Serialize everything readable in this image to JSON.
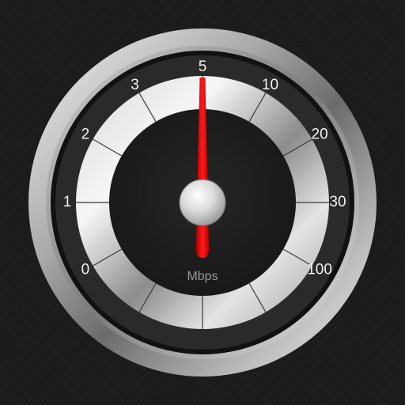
{
  "gauge": {
    "unit": "Mbps",
    "scale_labels": [
      "0",
      "1",
      "2",
      "3",
      "5",
      "10",
      "20",
      "30",
      "100"
    ],
    "needle_value": "5",
    "needle_color": "#e00000",
    "ring_color": "#c8c8c8",
    "face_color": "#1e1e1e"
  },
  "icons": {
    "hub": "needle-hub-icon"
  }
}
